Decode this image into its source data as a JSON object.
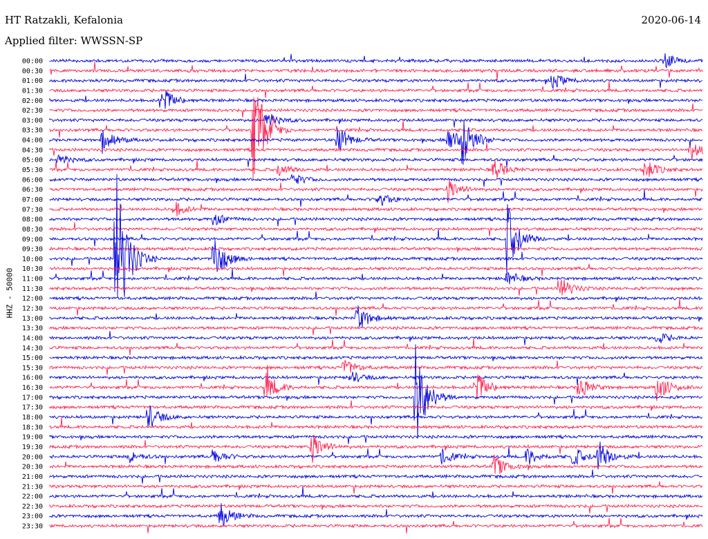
{
  "header": {
    "station": "HT Ratzakli, Kefalonia",
    "date": "2020-06-14",
    "filter": "Applied filter: WWSSN-SP"
  },
  "chart_data": {
    "type": "line",
    "title": "HT Ratzakli, Kefalonia",
    "ylabel": "HHZ - 50000",
    "xlabel": "",
    "trace_colors": [
      "#0000dd",
      "#ff1f4e"
    ],
    "row_labels": [
      "00:00",
      "00:30",
      "01:00",
      "01:30",
      "02:00",
      "02:30",
      "03:00",
      "03:30",
      "04:00",
      "04:30",
      "05:00",
      "05:30",
      "06:00",
      "06:30",
      "07:00",
      "07:30",
      "08:00",
      "08:30",
      "09:00",
      "09:30",
      "10:00",
      "10:30",
      "11:00",
      "11:30",
      "12:00",
      "12:30",
      "13:00",
      "13:30",
      "14:00",
      "14:30",
      "15:00",
      "15:30",
      "16:00",
      "16:30",
      "17:00",
      "17:30",
      "18:00",
      "18:30",
      "19:00",
      "19:30",
      "20:00",
      "20:30",
      "21:00",
      "21:30",
      "22:00",
      "22:30",
      "23:00",
      "23:30"
    ],
    "events": [
      {
        "row": 0,
        "x": 0.94,
        "amp": 12
      },
      {
        "row": 2,
        "x": 0.77,
        "amp": 12
      },
      {
        "row": 4,
        "x": 0.17,
        "amp": 24
      },
      {
        "row": 6,
        "x": 0.33,
        "amp": 14
      },
      {
        "row": 7,
        "x": 0.31,
        "amp": 90
      },
      {
        "row": 8,
        "x": 0.08,
        "amp": 20
      },
      {
        "row": 8,
        "x": 0.44,
        "amp": 22
      },
      {
        "row": 8,
        "x": 0.61,
        "amp": 20
      },
      {
        "row": 8,
        "x": 0.63,
        "amp": 42
      },
      {
        "row": 9,
        "x": 0.98,
        "amp": 16
      },
      {
        "row": 10,
        "x": 0.01,
        "amp": 10
      },
      {
        "row": 11,
        "x": 0.35,
        "amp": 10
      },
      {
        "row": 11,
        "x": 0.68,
        "amp": 16
      },
      {
        "row": 11,
        "x": 0.91,
        "amp": 18
      },
      {
        "row": 12,
        "x": 0.37,
        "amp": 10
      },
      {
        "row": 13,
        "x": 0.61,
        "amp": 18
      },
      {
        "row": 14,
        "x": 0.5,
        "amp": 14
      },
      {
        "row": 15,
        "x": 0.19,
        "amp": 12
      },
      {
        "row": 16,
        "x": 0.25,
        "amp": 10
      },
      {
        "row": 18,
        "x": 0.7,
        "amp": 55
      },
      {
        "row": 20,
        "x": 0.1,
        "amp": 150
      },
      {
        "row": 20,
        "x": 0.25,
        "amp": 40
      },
      {
        "row": 22,
        "x": 0.7,
        "amp": 12
      },
      {
        "row": 23,
        "x": 0.78,
        "amp": 20
      },
      {
        "row": 26,
        "x": 0.47,
        "amp": 22
      },
      {
        "row": 28,
        "x": 0.93,
        "amp": 10
      },
      {
        "row": 31,
        "x": 0.45,
        "amp": 14
      },
      {
        "row": 32,
        "x": 0.46,
        "amp": 10
      },
      {
        "row": 33,
        "x": 0.33,
        "amp": 24
      },
      {
        "row": 33,
        "x": 0.65,
        "amp": 30
      },
      {
        "row": 33,
        "x": 0.81,
        "amp": 18
      },
      {
        "row": 33,
        "x": 0.93,
        "amp": 22
      },
      {
        "row": 34,
        "x": 0.56,
        "amp": 80
      },
      {
        "row": 36,
        "x": 0.15,
        "amp": 20
      },
      {
        "row": 39,
        "x": 0.4,
        "amp": 26
      },
      {
        "row": 40,
        "x": 0.12,
        "amp": 10
      },
      {
        "row": 40,
        "x": 0.25,
        "amp": 12
      },
      {
        "row": 40,
        "x": 0.6,
        "amp": 12
      },
      {
        "row": 40,
        "x": 0.73,
        "amp": 14
      },
      {
        "row": 40,
        "x": 0.8,
        "amp": 16
      },
      {
        "row": 40,
        "x": 0.84,
        "amp": 24
      },
      {
        "row": 41,
        "x": 0.68,
        "amp": 18
      },
      {
        "row": 46,
        "x": 0.26,
        "amp": 20
      }
    ]
  }
}
